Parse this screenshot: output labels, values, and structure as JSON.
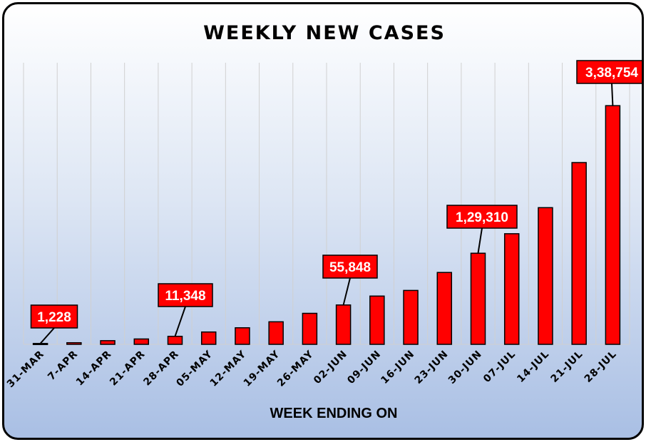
{
  "chart_data": {
    "type": "bar",
    "title": "WEEKLY NEW CASES",
    "xlabel": "WEEK ENDING ON",
    "ylabel": "",
    "categories": [
      "31-MAR",
      "7-APR",
      "14-APR",
      "21-APR",
      "28-APR",
      "05-MAY",
      "12-MAY",
      "19-MAY",
      "26-MAY",
      "02-JUN",
      "09-JUN",
      "16-JUN",
      "23-JUN",
      "30-JUN",
      "07-JUL",
      "14-JUL",
      "21-JUL",
      "28-JUL"
    ],
    "values": [
      1228,
      2300,
      5200,
      7600,
      11348,
      17500,
      23500,
      32000,
      44000,
      55848,
      68500,
      76500,
      102000,
      129310,
      157000,
      194000,
      258000,
      338754
    ],
    "ylim": [
      0,
      340000
    ],
    "grid": "vertical",
    "legend": "none",
    "bar_color": "#ff0000",
    "bar_outline": "#000000",
    "callouts": [
      {
        "index": 0,
        "label": "1,228"
      },
      {
        "index": 4,
        "label": "11,348"
      },
      {
        "index": 9,
        "label": "55,848"
      },
      {
        "index": 13,
        "label": "1,29,310"
      },
      {
        "index": 17,
        "label": "3,38,754"
      }
    ]
  }
}
